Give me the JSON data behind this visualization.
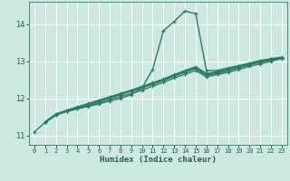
{
  "xlabel": "Humidex (Indice chaleur)",
  "bg_color": "#cce8e0",
  "grid_color": "#ffffff",
  "line_color": "#2d7a6a",
  "xlim": [
    -0.5,
    23.5
  ],
  "ylim": [
    10.75,
    14.6
  ],
  "xticks": [
    0,
    1,
    2,
    3,
    4,
    5,
    6,
    7,
    8,
    9,
    10,
    11,
    12,
    13,
    14,
    15,
    16,
    17,
    18,
    19,
    20,
    21,
    22,
    23
  ],
  "yticks": [
    11,
    12,
    13,
    14
  ],
  "lines": [
    {
      "x": [
        0,
        1,
        2,
        3,
        4,
        5,
        6,
        7,
        8,
        9,
        10,
        11,
        12,
        13,
        14,
        15,
        16,
        17,
        18,
        19,
        20,
        21,
        22,
        23
      ],
      "y": [
        11.1,
        11.35,
        11.55,
        11.65,
        11.72,
        11.78,
        11.85,
        11.93,
        12.0,
        12.1,
        12.28,
        12.78,
        13.82,
        14.07,
        14.35,
        14.28,
        12.75,
        12.75,
        12.82,
        12.88,
        12.94,
        13.0,
        13.05,
        13.08
      ]
    },
    {
      "x": [
        1,
        2,
        3,
        4,
        5,
        6,
        7,
        8,
        9,
        10,
        11,
        12,
        13,
        14,
        15,
        16,
        17,
        18,
        19,
        20,
        21,
        22,
        23
      ],
      "y": [
        11.35,
        11.55,
        11.65,
        11.72,
        11.8,
        11.88,
        11.97,
        12.05,
        12.13,
        12.22,
        12.33,
        12.43,
        12.55,
        12.65,
        12.75,
        12.58,
        12.64,
        12.7,
        12.78,
        12.86,
        12.93,
        13.0,
        13.07
      ]
    },
    {
      "x": [
        1,
        2,
        3,
        4,
        5,
        6,
        7,
        8,
        9,
        10,
        11,
        12,
        13,
        14,
        15,
        16,
        17,
        18,
        19,
        20,
        21,
        22,
        23
      ],
      "y": [
        11.35,
        11.56,
        11.66,
        11.74,
        11.83,
        11.92,
        12.01,
        12.1,
        12.19,
        12.28,
        12.38,
        12.48,
        12.6,
        12.7,
        12.8,
        12.62,
        12.67,
        12.74,
        12.82,
        12.9,
        12.97,
        13.03,
        13.09
      ]
    },
    {
      "x": [
        1,
        2,
        3,
        4,
        5,
        6,
        7,
        8,
        9,
        10,
        11,
        12,
        13,
        14,
        15,
        16,
        17,
        18,
        19,
        20,
        21,
        22,
        23
      ],
      "y": [
        11.36,
        11.57,
        11.67,
        11.76,
        11.85,
        11.94,
        12.03,
        12.12,
        12.21,
        12.3,
        12.4,
        12.5,
        12.62,
        12.73,
        12.83,
        12.65,
        12.7,
        12.77,
        12.85,
        12.92,
        13.0,
        13.06,
        13.1
      ]
    },
    {
      "x": [
        1,
        2,
        3,
        4,
        5,
        6,
        7,
        8,
        9,
        10,
        11,
        12,
        13,
        14,
        15,
        16,
        17,
        18,
        19,
        20,
        21,
        22,
        23
      ],
      "y": [
        11.37,
        11.58,
        11.68,
        11.77,
        11.86,
        11.95,
        12.04,
        12.13,
        12.22,
        12.32,
        12.42,
        12.52,
        12.64,
        12.75,
        12.85,
        12.67,
        12.72,
        12.79,
        12.87,
        12.95,
        13.02,
        13.07,
        13.11
      ]
    }
  ]
}
